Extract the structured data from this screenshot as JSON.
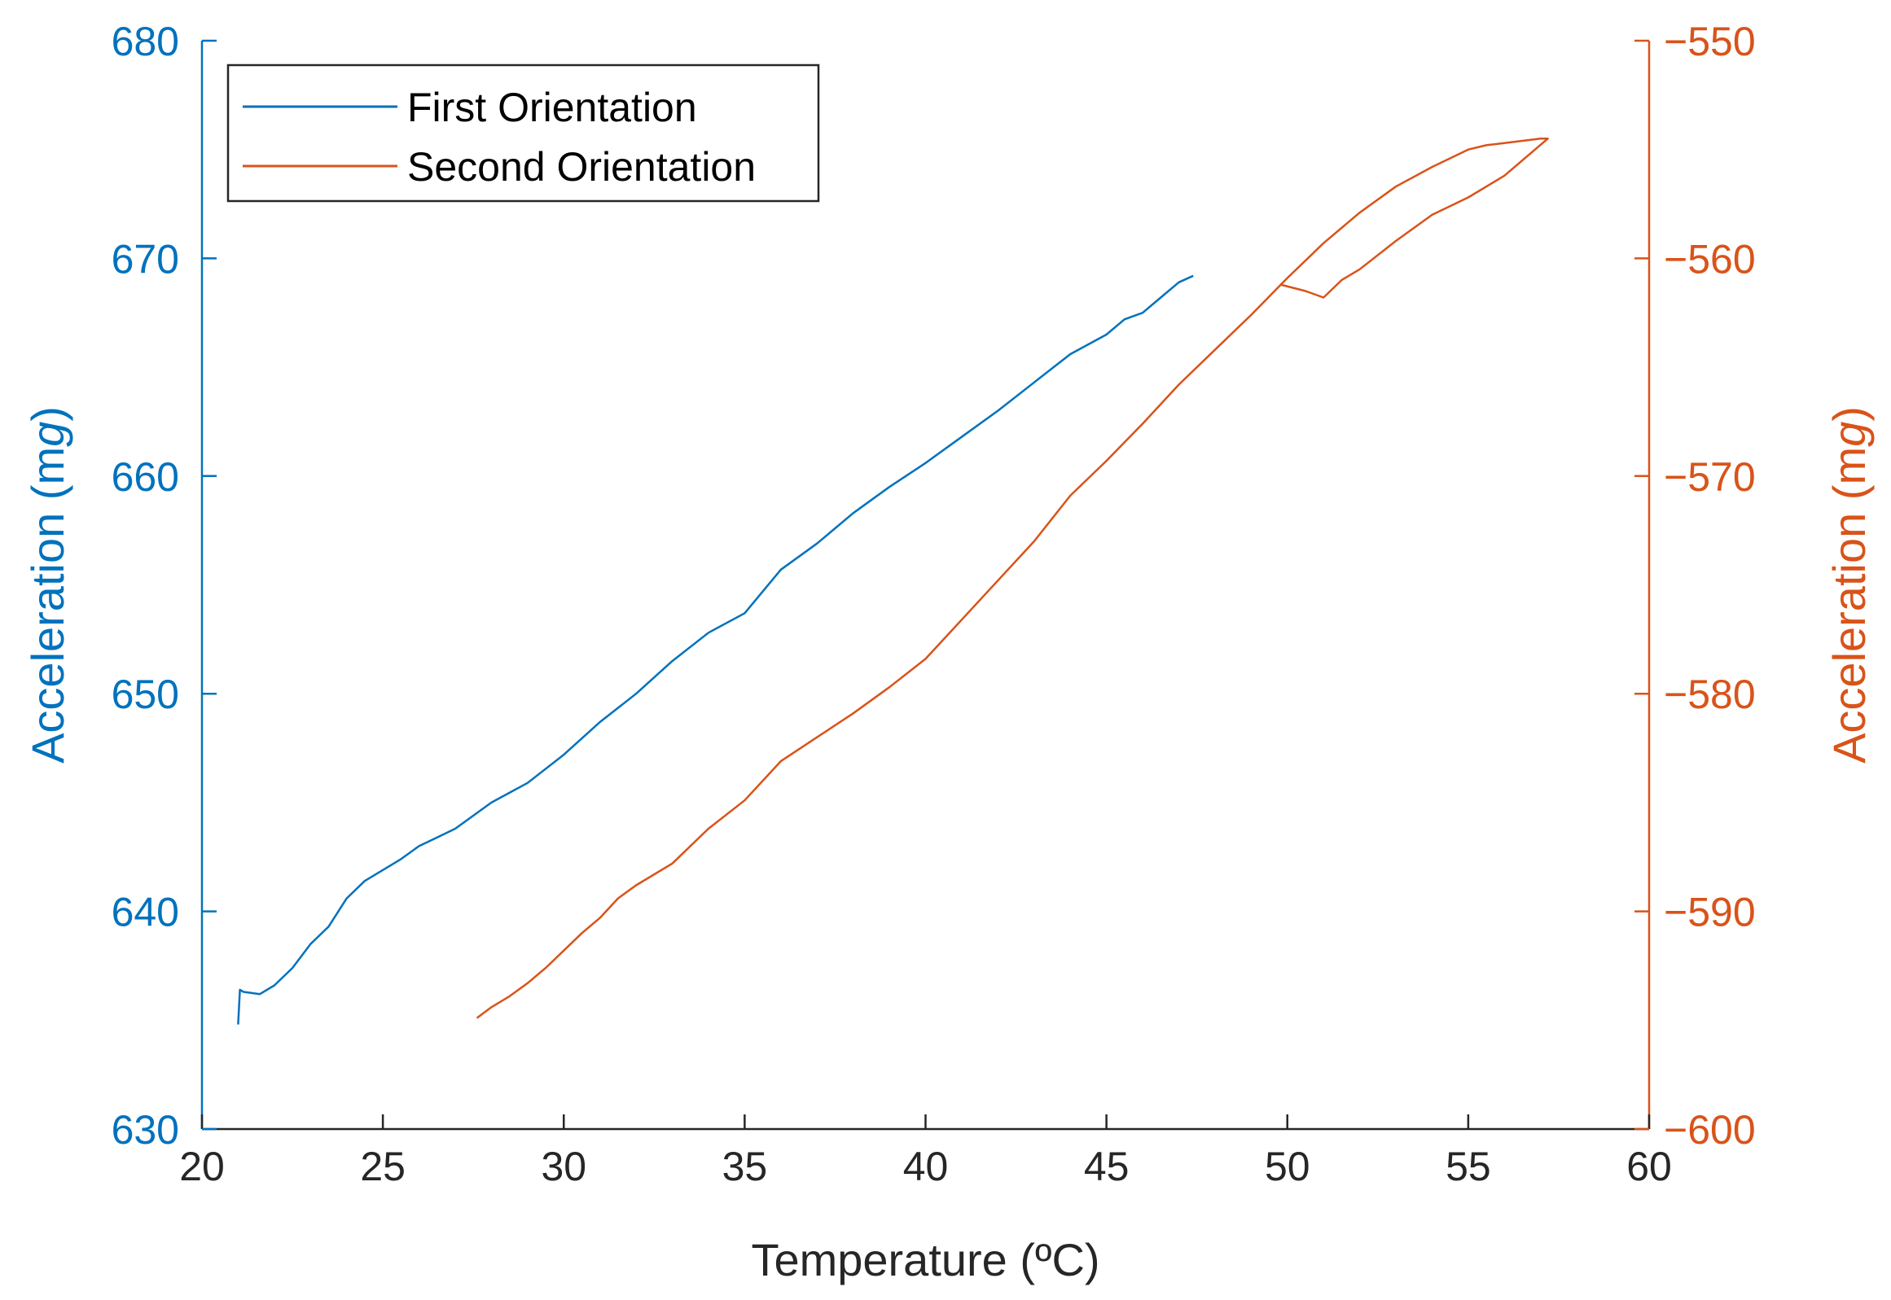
{
  "chart_data": {
    "type": "line",
    "xlabel": "Temperature (ºC)",
    "xlim": [
      20,
      60
    ],
    "xticks": [
      20,
      25,
      30,
      35,
      40,
      45,
      50,
      55,
      60
    ],
    "left_axis": {
      "label_prefix": "Acceleration (m",
      "label_unit": "g",
      "label_suffix": ")",
      "ylim": [
        630,
        680
      ],
      "ticks": [
        630,
        640,
        650,
        660,
        670,
        680
      ],
      "color": "#0072BD"
    },
    "right_axis": {
      "label_prefix": "Acceleration (m",
      "label_unit": "g",
      "label_suffix": ")",
      "ylim": [
        -600,
        -550
      ],
      "ticks": [
        -600,
        -590,
        -580,
        -570,
        -560,
        -550
      ],
      "tick_labels": [
        "−600",
        "−590",
        "−580",
        "−570",
        "−560",
        "−550"
      ],
      "color": "#D95319"
    },
    "series": [
      {
        "name": "First Orientation",
        "axis": "left",
        "color": "#0072BD",
        "x": [
          21.0,
          21.05,
          21.15,
          21.6,
          22.0,
          22.5,
          23.0,
          23.5,
          24.0,
          24.5,
          25.0,
          25.5,
          26.0,
          26.5,
          27.0,
          28.0,
          29.0,
          30.0,
          31.0,
          32.0,
          33.0,
          34.0,
          35.0,
          36.0,
          37.0,
          38.0,
          39.0,
          40.0,
          41.0,
          42.0,
          43.0,
          44.0,
          45.0,
          45.5,
          46.0,
          46.5,
          47.0,
          47.4
        ],
        "y": [
          634.8,
          636.4,
          636.3,
          636.2,
          636.6,
          637.4,
          638.5,
          639.3,
          640.6,
          641.4,
          641.9,
          642.4,
          643.0,
          643.4,
          643.8,
          645.0,
          645.9,
          647.2,
          648.7,
          650.0,
          651.5,
          652.8,
          653.7,
          655.7,
          656.9,
          658.3,
          659.5,
          660.6,
          661.8,
          663.0,
          664.3,
          665.6,
          666.5,
          667.2,
          667.5,
          668.2,
          668.9,
          669.2
        ]
      },
      {
        "name": "Second Orientation",
        "axis": "right",
        "color": "#D95319",
        "x": [
          27.6,
          28.0,
          28.5,
          29.0,
          29.5,
          30.0,
          30.5,
          31.0,
          31.5,
          32.0,
          33.0,
          34.0,
          35.0,
          36.0,
          37.0,
          38.0,
          39.0,
          40.0,
          41.0,
          42.0,
          43.0,
          44.0,
          45.0,
          46.0,
          47.0,
          48.0,
          49.0,
          50.0,
          51.0,
          52.0,
          53.0,
          54.0,
          55.0,
          55.5,
          56.0,
          56.5,
          57.0,
          57.2,
          56.0,
          55.5,
          55.0,
          54.0,
          53.0,
          52.0,
          51.5,
          51.0,
          50.5,
          49.8
        ],
        "y": [
          -594.9,
          -594.4,
          -593.9,
          -593.3,
          -592.6,
          -591.8,
          -591.0,
          -590.3,
          -589.4,
          -588.8,
          -587.8,
          -586.2,
          -584.9,
          -583.1,
          -582.0,
          -580.9,
          -579.7,
          -578.4,
          -576.6,
          -574.8,
          -573.0,
          -570.9,
          -569.3,
          -567.6,
          -565.8,
          -564.2,
          -562.6,
          -560.9,
          -559.3,
          -557.9,
          -556.7,
          -555.8,
          -555.0,
          -554.8,
          -554.7,
          -554.6,
          -554.5,
          -554.5,
          -556.2,
          -556.7,
          -557.2,
          -558.0,
          -559.2,
          -560.5,
          -561.0,
          -561.8,
          -561.5,
          -561.2
        ]
      }
    ],
    "legend": {
      "location": "top-left",
      "entries": [
        "First Orientation",
        "Second Orientation"
      ]
    },
    "grid": false
  }
}
